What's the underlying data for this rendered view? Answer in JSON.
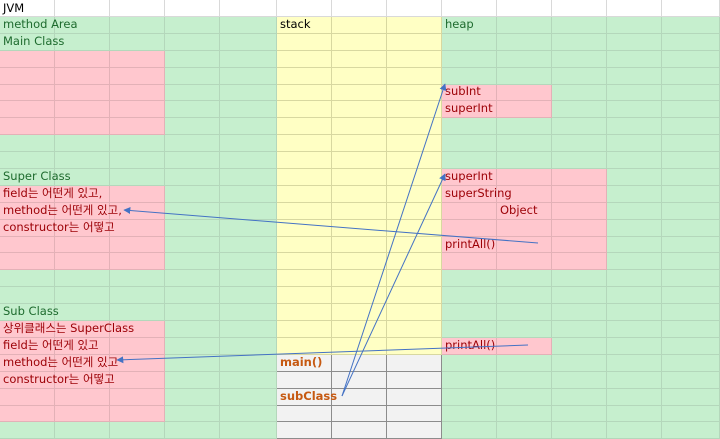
{
  "colors": {
    "green_fill": "#c6efce",
    "pink_fill": "#ffc7ce",
    "yellow_fill": "#ffffc4",
    "gray_fill": "#f2f2f2",
    "arrow": "#4472c4",
    "green_text": "#1e6b2e",
    "red_text": "#9c0006",
    "orange_text": "#c65911"
  },
  "sheet_title": "JVM",
  "method_area": {
    "header": "method Area",
    "main_class": "Main Class",
    "super_class": {
      "title": "Super Class",
      "lines": [
        "field는 어떤게 있고,",
        "method는 어떤게 있고,",
        "constructor는 어떻고"
      ]
    },
    "sub_class": {
      "title": "Sub Class",
      "lines": [
        "상위클래스는 SuperClass",
        "field는 어떤게 있고",
        "method는 어떤게 있고",
        "constructor는 어떻고"
      ]
    }
  },
  "stack": {
    "header": "stack",
    "frames": [
      "main()",
      "subClass"
    ]
  },
  "heap": {
    "header": "heap",
    "sub_object": [
      "subInt",
      "superInt"
    ],
    "super_object": [
      "superInt",
      "superString",
      "Object",
      "printAll()"
    ],
    "sub_method": "printAll()"
  }
}
